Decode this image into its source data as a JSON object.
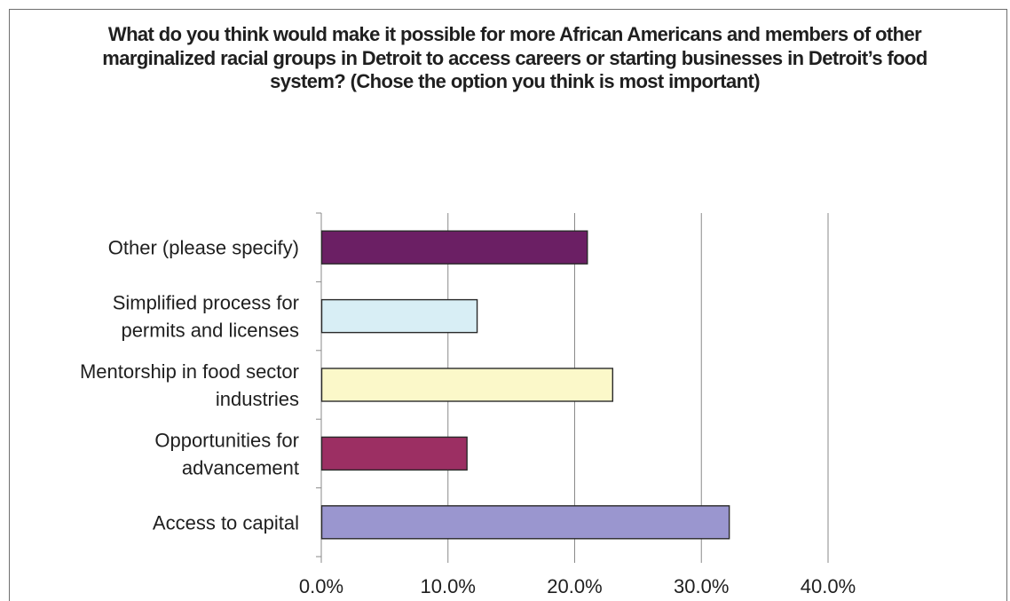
{
  "chart_data": {
    "type": "bar",
    "orientation": "horizontal",
    "title": "What do you think would make it possible for more African Americans and members of other marginalized racial groups in Detroit to access careers or starting businesses in Detroit’s food system? (Chose the option you think is most important)",
    "categories": [
      [
        "Other (please specify)"
      ],
      [
        "Simplified process for",
        "permits and licenses"
      ],
      [
        "Mentorship in food sector",
        "industries"
      ],
      [
        "Opportunities for",
        "advancement"
      ],
      [
        "Access to capital"
      ]
    ],
    "values": [
      21.0,
      12.3,
      23.0,
      11.5,
      32.2
    ],
    "bar_colors": [
      "#6b1f64",
      "#d8eef5",
      "#fbf8c9",
      "#9c2f63",
      "#9a96cf"
    ],
    "xlim": [
      0,
      40
    ],
    "x_ticks": [
      0,
      10,
      20,
      30,
      40
    ],
    "x_tick_labels": [
      "0.0%",
      "10.0%",
      "20.0%",
      "30.0%",
      "40.0%"
    ],
    "grid": "vertical",
    "legend": "none"
  }
}
